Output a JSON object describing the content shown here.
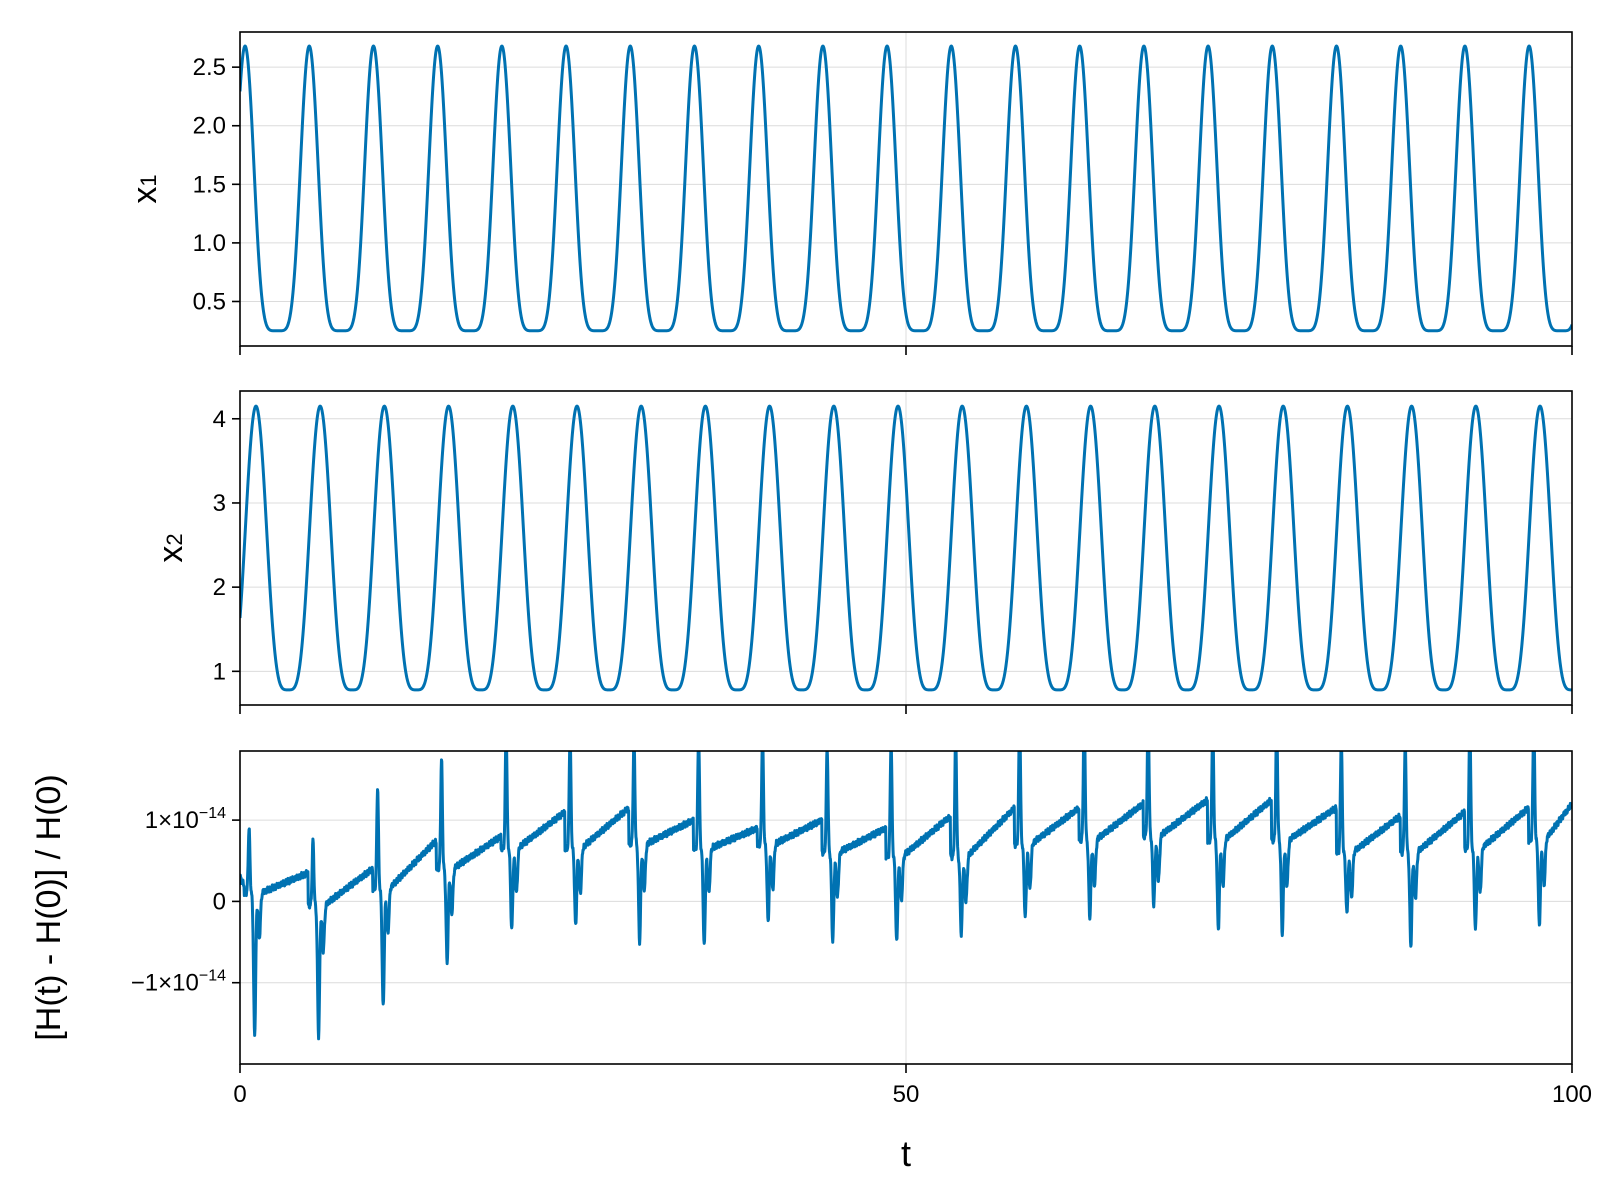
{
  "colors": {
    "series": "#0072b2",
    "grid": "#dcdcdc",
    "frame": "#000000"
  },
  "chart_data": [
    {
      "type": "line",
      "id": "panel-x1",
      "ylabel_base": "x",
      "ylabel_sub": "1",
      "xlim": [
        0,
        100
      ],
      "ylim": [
        0.12,
        2.8
      ],
      "yticks": [
        0.5,
        1.0,
        1.5,
        2.0,
        2.5
      ],
      "ytick_labels": [
        "0.5",
        "1.0",
        "1.5",
        "2.0",
        "2.5"
      ],
      "xticks": [
        0,
        50,
        100
      ],
      "show_xtick_labels": false,
      "grid": true,
      "series": [
        {
          "period": 4.82,
          "phase": 0.38,
          "min": 0.25,
          "max": 2.68,
          "shape": 2.8,
          "start_value": 2.3,
          "end_value": 0.35
        }
      ]
    },
    {
      "type": "line",
      "id": "panel-x2",
      "ylabel_base": "x",
      "ylabel_sub": "2",
      "xlim": [
        0,
        100
      ],
      "ylim": [
        0.6,
        4.33
      ],
      "yticks": [
        1,
        2,
        3,
        4
      ],
      "ytick_labels": [
        "1",
        "2",
        "3",
        "4"
      ],
      "xticks": [
        0,
        50,
        100
      ],
      "show_xtick_labels": false,
      "grid": true,
      "series": [
        {
          "period": 4.82,
          "phase": 1.2,
          "min": 0.78,
          "max": 4.15,
          "shape": 2.0,
          "start_value": 1.0,
          "end_value": 1.1
        }
      ]
    },
    {
      "type": "line",
      "id": "panel-energy",
      "ylabel": "[H(t) - H(0)] / H(0)",
      "xlabel": "t",
      "xlim": [
        0,
        100
      ],
      "ylim": [
        -2e-14,
        1.85e-14
      ],
      "yticks": [
        -1e-14,
        0,
        1e-14
      ],
      "ytick_labels": [
        {
          "mant": "−1×10",
          "exp": "−14"
        },
        {
          "mant": "0",
          "exp": ""
        },
        {
          "mant": "1×10",
          "exp": "−14"
        }
      ],
      "xticks": [
        0,
        50,
        100
      ],
      "xtick_labels": [
        "0",
        "50",
        "100"
      ],
      "show_xtick_labels": true,
      "grid": true,
      "series": [
        {
          "period": 4.82,
          "spike_times": [
            0.9,
            5.7,
            10.55,
            15.35,
            20.2,
            25.0,
            29.8,
            34.65,
            39.45,
            44.3,
            49.1,
            53.95,
            58.75,
            63.6,
            68.4,
            73.25,
            78.05,
            82.9,
            87.7,
            92.55,
            97.35
          ],
          "spike_up": [
            0.8,
            0.8,
            1.25,
            1.35,
            1.48,
            1.42,
            1.3,
            1.4,
            1.35,
            1.3,
            1.42,
            1.5,
            1.6,
            1.65,
            1.55,
            1.45,
            1.5,
            1.4,
            1.35,
            1.55,
            1.5
          ],
          "spike_down": [
            -1.75,
            -1.6,
            -1.45,
            -1.15,
            -1.0,
            -0.95,
            -1.2,
            -1.2,
            -0.95,
            -1.1,
            -1.05,
            -0.95,
            -0.9,
            -0.95,
            -0.85,
            -1.1,
            -1.15,
            -0.75,
            -1.15,
            -1.0,
            -1.05
          ],
          "baseline_start": [
            0.1,
            -0.05,
            0.15,
            0.4,
            0.65,
            0.65,
            0.7,
            0.65,
            0.7,
            0.6,
            0.55,
            0.55,
            0.7,
            0.75,
            0.8,
            0.75,
            0.75,
            0.6,
            0.6,
            0.65,
            0.75
          ],
          "baseline_end": [
            0.35,
            0.4,
            0.75,
            0.8,
            1.1,
            1.15,
            1.0,
            0.9,
            1.0,
            0.9,
            1.05,
            1.15,
            1.15,
            1.2,
            1.25,
            1.25,
            1.15,
            1.05,
            1.1,
            1.15,
            1.2
          ],
          "unit_exponent": -14
        }
      ]
    }
  ]
}
